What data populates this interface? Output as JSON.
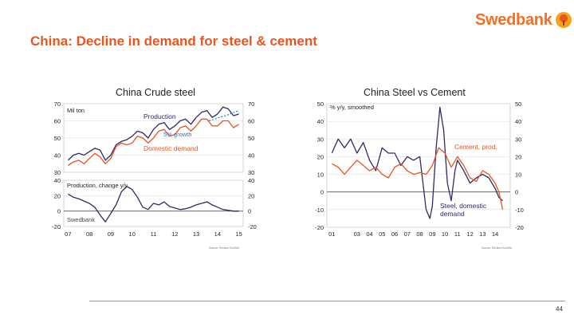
{
  "slide": {
    "title": "China: Decline in demand for steel & cement",
    "logo_text": "Swedbank",
    "page_number": "44"
  },
  "colors": {
    "accent": "#e8551e",
    "navy": "#2e2a66",
    "orange": "#e8551e",
    "blue": "#2a7ab8",
    "grid": "#d9d9d9"
  },
  "chart_data": [
    {
      "type": "line",
      "title": "China Crude steel",
      "source": "Source: Reuters EcoWin",
      "panels": [
        {
          "name": "levels",
          "ylabel": "Mil ton",
          "ylim": [
            30,
            70
          ],
          "yticks": [
            30,
            40,
            50,
            60,
            70
          ],
          "series": [
            {
              "name": "Production",
              "color": "#2e2a66",
              "x": [
                2007.0,
                2007.25,
                2007.5,
                2007.75,
                2008.0,
                2008.25,
                2008.5,
                2008.75,
                2009.0,
                2009.25,
                2009.5,
                2009.75,
                2010.0,
                2010.25,
                2010.5,
                2010.75,
                2011.0,
                2011.25,
                2011.5,
                2011.75,
                2012.0,
                2012.25,
                2012.5,
                2012.75,
                2013.0,
                2013.25,
                2013.5,
                2013.75,
                2014.0,
                2014.25,
                2014.5,
                2014.75,
                2015.0
              ],
              "values": [
                37,
                40,
                41,
                40,
                42,
                44,
                43,
                37,
                40,
                46,
                48,
                49,
                51,
                54,
                53,
                50,
                55,
                58,
                59,
                55,
                57,
                60,
                61,
                58,
                62,
                65,
                66,
                62,
                64,
                68,
                67,
                63,
                64
              ]
            },
            {
              "name": "Domestic demand",
              "color": "#e8551e",
              "x": [
                2007.0,
                2007.25,
                2007.5,
                2007.75,
                2008.0,
                2008.25,
                2008.5,
                2008.75,
                2009.0,
                2009.25,
                2009.5,
                2009.75,
                2010.0,
                2010.25,
                2010.5,
                2010.75,
                2011.0,
                2011.25,
                2011.5,
                2011.75,
                2012.0,
                2012.25,
                2012.5,
                2012.75,
                2013.0,
                2013.25,
                2013.5,
                2013.75,
                2014.0,
                2014.25,
                2014.5,
                2014.75,
                2015.0
              ],
              "values": [
                34,
                36,
                37,
                35,
                38,
                41,
                39,
                35,
                38,
                45,
                47,
                46,
                47,
                51,
                50,
                47,
                50,
                54,
                55,
                51,
                52,
                56,
                57,
                54,
                57,
                61,
                61,
                57,
                57,
                60,
                60,
                56,
                58
              ]
            },
            {
              "name": "5% growth",
              "color": "#2a7ab8",
              "dashed": true,
              "x": [
                2013.6,
                2014.6,
                2015.0
              ],
              "values": [
                60,
                64,
                66
              ]
            }
          ],
          "labels": {
            "production": "Production",
            "growth": "5% growth",
            "demand": "Domestic demand"
          }
        },
        {
          "name": "growth",
          "label": "Production, change y/y",
          "watermark": "Swedbank",
          "ylim": [
            -20,
            40
          ],
          "yticks": [
            -20,
            0,
            20,
            40
          ],
          "series": [
            {
              "name": "Production, change y/y",
              "color": "#2e2a66",
              "x": [
                2007.0,
                2007.25,
                2007.5,
                2007.75,
                2008.0,
                2008.25,
                2008.5,
                2008.75,
                2009.0,
                2009.25,
                2009.5,
                2009.75,
                2010.0,
                2010.25,
                2010.5,
                2010.75,
                2011.0,
                2011.25,
                2011.5,
                2011.75,
                2012.0,
                2012.25,
                2012.5,
                2012.75,
                2013.0,
                2013.25,
                2013.5,
                2013.75,
                2014.0,
                2014.25,
                2014.5,
                2014.75,
                2015.0
              ],
              "values": [
                22,
                18,
                16,
                13,
                10,
                5,
                -5,
                -14,
                -3,
                8,
                25,
                32,
                28,
                18,
                5,
                2,
                10,
                8,
                12,
                6,
                4,
                2,
                3,
                5,
                8,
                10,
                12,
                8,
                5,
                2,
                1,
                0,
                0
              ]
            }
          ]
        }
      ],
      "xticks": [
        "07",
        "08",
        "09",
        "10",
        "11",
        "12",
        "13",
        "14",
        "15"
      ]
    },
    {
      "type": "line",
      "title": "China Steel vs Cement",
      "ylabel": "% y/y, smoothed",
      "ylim": [
        -20,
        50
      ],
      "yticks": [
        -20,
        -10,
        0,
        10,
        20,
        30,
        40,
        50
      ],
      "xticks": [
        "01",
        "03",
        "04",
        "05",
        "06",
        "07",
        "08",
        "09",
        "10",
        "11",
        "12",
        "13",
        "14"
      ],
      "series": [
        {
          "name": "Steel, domestic demand",
          "color": "#2e2a66",
          "x": [
            2001.0,
            2001.5,
            2002.0,
            2002.5,
            2003.0,
            2003.5,
            2004.0,
            2004.5,
            2005.0,
            2005.5,
            2006.0,
            2006.5,
            2007.0,
            2007.5,
            2008.0,
            2008.5,
            2008.8,
            2009.0,
            2009.3,
            2009.6,
            2009.9,
            2010.2,
            2010.5,
            2010.8,
            2011.0,
            2011.5,
            2012.0,
            2012.5,
            2013.0,
            2013.5,
            2014.0,
            2014.3,
            2014.6
          ],
          "values": [
            22,
            30,
            25,
            30,
            22,
            28,
            18,
            12,
            25,
            22,
            22,
            15,
            20,
            18,
            20,
            -10,
            -15,
            -8,
            25,
            48,
            35,
            5,
            -5,
            12,
            18,
            12,
            5,
            8,
            10,
            8,
            2,
            -3,
            -5
          ]
        },
        {
          "name": "Cement, prod.",
          "color": "#e8551e",
          "x": [
            2001.0,
            2001.5,
            2002.0,
            2002.5,
            2003.0,
            2003.5,
            2004.0,
            2004.5,
            2005.0,
            2005.5,
            2006.0,
            2006.5,
            2007.0,
            2007.5,
            2008.0,
            2008.5,
            2009.0,
            2009.5,
            2010.0,
            2010.5,
            2011.0,
            2011.5,
            2012.0,
            2012.5,
            2013.0,
            2013.5,
            2014.0,
            2014.3,
            2014.6
          ],
          "values": [
            16,
            14,
            10,
            14,
            18,
            15,
            12,
            14,
            10,
            8,
            14,
            16,
            12,
            10,
            11,
            10,
            15,
            25,
            22,
            14,
            20,
            15,
            8,
            6,
            12,
            10,
            5,
            0,
            -10
          ]
        }
      ],
      "labels": {
        "smoothed": "% y/y, smoothed",
        "cement": "Cement, prod.",
        "steel_1": "Steel, domestic",
        "steel_2": "demand"
      },
      "source": "Source: Reuters EcoWin"
    }
  ]
}
